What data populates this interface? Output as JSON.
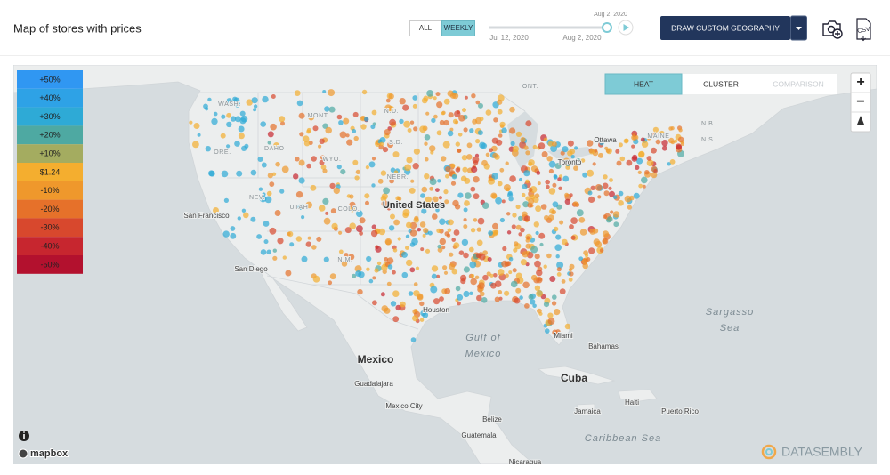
{
  "header": {
    "title": "Map of stores with prices",
    "toggle": [
      "ALL",
      "WEEKLY"
    ],
    "slider": {
      "current": "Aug 2, 2020",
      "start": "Jul 12, 2020",
      "end": "Aug 2, 2020"
    },
    "draw_button": "DRAW CUSTOM GEOGRAPHY",
    "csv_icon": "CSV"
  },
  "legend": {
    "items": [
      {
        "label": "+50%",
        "color": "#3097f2"
      },
      {
        "label": "+40%",
        "color": "#2ea2e6"
      },
      {
        "label": "+30%",
        "color": "#2eaad6"
      },
      {
        "label": "+20%",
        "color": "#4ea9a2"
      },
      {
        "label": "+10%",
        "color": "#a4ac60"
      },
      {
        "label": "$1.24",
        "color": "#f4ae2f"
      },
      {
        "label": "-10%",
        "color": "#ef982c"
      },
      {
        "label": "-20%",
        "color": "#e6712a"
      },
      {
        "label": "-30%",
        "color": "#d8482d"
      },
      {
        "label": "-40%",
        "color": "#c7262f"
      },
      {
        "label": "-50%",
        "color": "#b3112e"
      }
    ]
  },
  "map_tabs": [
    "HEAT",
    "CLUSTER",
    "COMPARISON"
  ],
  "zoom": [
    "+",
    "−"
  ],
  "map_labels": [
    "WASH.",
    "MONT.",
    "N.D.",
    "ONT.",
    "IDAHO",
    "S.D.",
    "ORE.",
    "WYO.",
    "NEBR.",
    "NEV.",
    "UTAH",
    "COLO.",
    "N.M.",
    "MAINE",
    "N.B.",
    "N.S.",
    "Ottawa",
    "Toronto",
    "San Francisco",
    "San Diego",
    "Houston",
    "Miami",
    "Bahamas",
    "Guadalajara",
    "Mexico City",
    "Jamaica",
    "Haiti",
    "Puerto Rico",
    "Belize",
    "Guatemala",
    "Nicaragua"
  ],
  "major_labels": [
    "United States",
    "Mexico",
    "Cuba"
  ],
  "water_labels": [
    [
      "Gulf of",
      "Mexico"
    ],
    [
      "Sargasso",
      "Sea"
    ],
    [
      "Caribbean Sea"
    ]
  ],
  "attribution": "mapbox",
  "brand": "DATASEMBLY"
}
